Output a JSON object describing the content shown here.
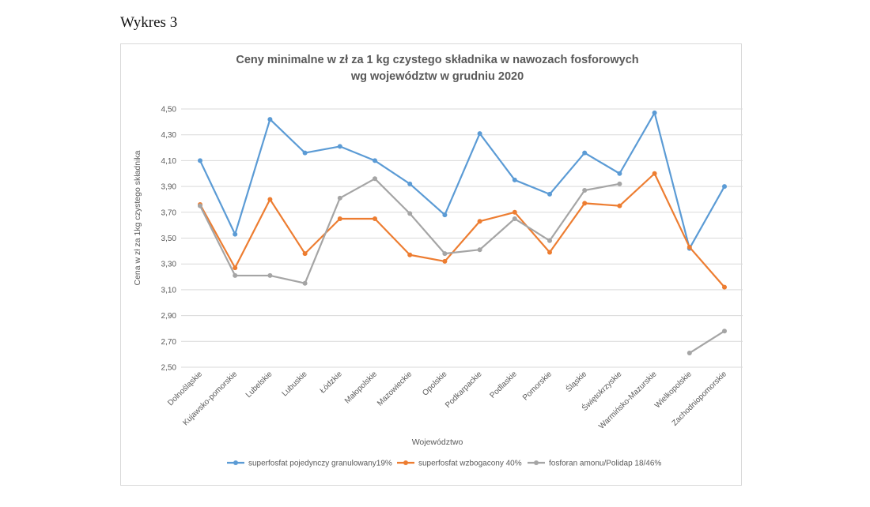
{
  "caption": "Wykres 3",
  "chart_data": {
    "type": "line",
    "title": "Ceny minimalne w zł za 1 kg czystego składnika w nawozach fosforowych",
    "subtitle": "wg województw w grudniu 2020",
    "xlabel": "Województwo",
    "ylabel": "Cena w zł za 1kg czystego składnika",
    "ylim": [
      2.5,
      4.5
    ],
    "yticks": [
      "2,50",
      "2,70",
      "2,90",
      "3,10",
      "3,30",
      "3,50",
      "3,70",
      "3,90",
      "4,10",
      "4,30",
      "4,50"
    ],
    "grid": true,
    "legend": "bottom",
    "categories": [
      "Dolnośląskie",
      "Kujawsko-pomorskie",
      "Lubelskie",
      "Lubuskie",
      "Łódzkie",
      "Małopolskie",
      "Mazowieckie",
      "Opolskie",
      "Podkarpackie",
      "Podlaskie",
      "Pomorskie",
      "Śląskie",
      "Świętokrzyskie",
      "Warmińsko-Mazurskie",
      "Wielkopolskie",
      "Zachodniopomorskie"
    ],
    "series": [
      {
        "name": "superfosfat pojedynczy granulowany19%",
        "color": "#5b9bd5",
        "values": [
          4.1,
          3.53,
          4.42,
          4.16,
          4.21,
          4.1,
          3.92,
          3.68,
          4.31,
          3.95,
          3.84,
          4.16,
          4.0,
          4.47,
          3.42,
          3.9
        ]
      },
      {
        "name": "superfosfat wzbogacony 40%",
        "color": "#ed7d31",
        "values": [
          3.76,
          3.27,
          3.8,
          3.38,
          3.65,
          3.65,
          3.37,
          3.32,
          3.63,
          3.7,
          3.39,
          3.77,
          3.75,
          4.0,
          3.43,
          3.12
        ]
      },
      {
        "name": "fosforan amonu/Polidap 18/46%",
        "color": "#a5a5a5",
        "values": [
          3.75,
          3.21,
          3.21,
          3.15,
          3.81,
          3.96,
          3.69,
          3.38,
          3.41,
          3.65,
          3.48,
          3.87,
          3.92,
          null,
          2.61,
          2.78
        ]
      }
    ]
  }
}
